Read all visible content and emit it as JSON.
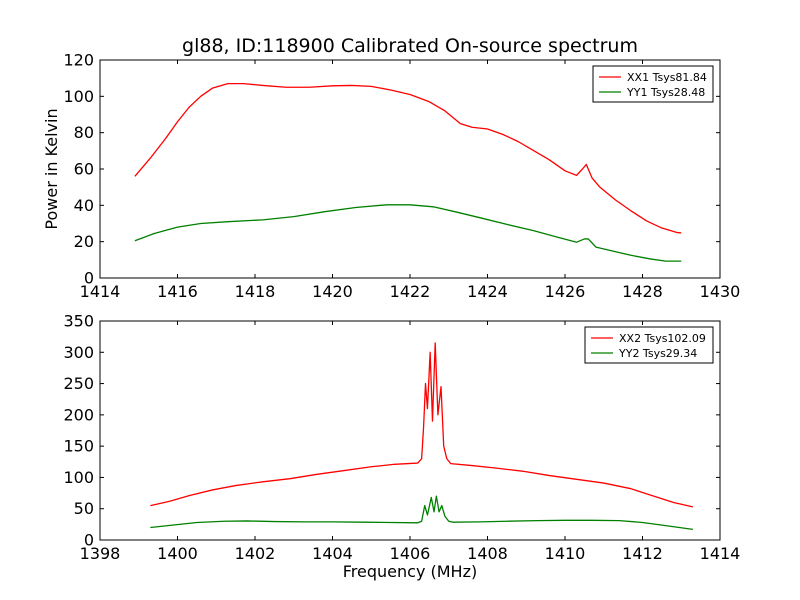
{
  "chart_data": [
    {
      "type": "line",
      "title": "gl88, ID:118900 Calibrated On-source spectrum",
      "xlabel": "",
      "ylabel": "Power in Kelvin",
      "xlim": [
        1414,
        1430
      ],
      "ylim": [
        0,
        120
      ],
      "xticks": [
        1414,
        1416,
        1418,
        1420,
        1422,
        1424,
        1426,
        1428,
        1430
      ],
      "yticks": [
        0,
        20,
        40,
        60,
        80,
        100,
        120
      ],
      "grid": false,
      "legend_position": "top-right",
      "series": [
        {
          "name": "XX1 Tsys81.84",
          "color": "#ff0000",
          "points": [
            [
              1414.9,
              56
            ],
            [
              1415.3,
              66
            ],
            [
              1415.7,
              77
            ],
            [
              1416.0,
              86
            ],
            [
              1416.3,
              94
            ],
            [
              1416.6,
              100
            ],
            [
              1416.9,
              104.5
            ],
            [
              1417.3,
              107
            ],
            [
              1417.7,
              107
            ],
            [
              1418.2,
              106
            ],
            [
              1418.8,
              105
            ],
            [
              1419.4,
              105
            ],
            [
              1420.0,
              105.8
            ],
            [
              1420.5,
              106
            ],
            [
              1421.0,
              105.5
            ],
            [
              1421.5,
              103.5
            ],
            [
              1422.0,
              101
            ],
            [
              1422.5,
              97
            ],
            [
              1422.9,
              92
            ],
            [
              1423.3,
              85
            ],
            [
              1423.6,
              83
            ],
            [
              1424.0,
              82
            ],
            [
              1424.4,
              79
            ],
            [
              1424.8,
              75
            ],
            [
              1425.2,
              70
            ],
            [
              1425.6,
              65
            ],
            [
              1426.0,
              59
            ],
            [
              1426.3,
              56.5
            ],
            [
              1426.45,
              60
            ],
            [
              1426.55,
              62.5
            ],
            [
              1426.7,
              55
            ],
            [
              1426.9,
              50
            ],
            [
              1427.3,
              43
            ],
            [
              1427.7,
              37
            ],
            [
              1428.1,
              31.5
            ],
            [
              1428.5,
              27.5
            ],
            [
              1428.9,
              25
            ],
            [
              1429.0,
              24.8
            ]
          ]
        },
        {
          "name": "YY1 Tsys28.48",
          "color": "#008000",
          "points": [
            [
              1414.9,
              20.5
            ],
            [
              1415.4,
              24.5
            ],
            [
              1416.0,
              28
            ],
            [
              1416.6,
              30
            ],
            [
              1417.3,
              31
            ],
            [
              1418.2,
              32
            ],
            [
              1419.0,
              33.8
            ],
            [
              1419.8,
              36.5
            ],
            [
              1420.6,
              38.8
            ],
            [
              1421.4,
              40.3
            ],
            [
              1422.0,
              40.3
            ],
            [
              1422.6,
              39.2
            ],
            [
              1423.2,
              36.3
            ],
            [
              1423.8,
              33.2
            ],
            [
              1424.5,
              29.5
            ],
            [
              1425.2,
              26
            ],
            [
              1425.8,
              22.5
            ],
            [
              1426.3,
              19.7
            ],
            [
              1426.5,
              21.5
            ],
            [
              1426.6,
              21.5
            ],
            [
              1426.8,
              17
            ],
            [
              1427.2,
              15
            ],
            [
              1427.7,
              12.5
            ],
            [
              1428.2,
              10.5
            ],
            [
              1428.6,
              9.3
            ],
            [
              1429.0,
              9.3
            ]
          ]
        }
      ]
    },
    {
      "type": "line",
      "title": "",
      "xlabel": "Frequency (MHz)",
      "ylabel": "",
      "xlim": [
        1398,
        1414
      ],
      "ylim": [
        0,
        350
      ],
      "xticks": [
        1398,
        1400,
        1402,
        1404,
        1406,
        1408,
        1410,
        1412,
        1414
      ],
      "yticks": [
        0,
        50,
        100,
        150,
        200,
        250,
        300,
        350
      ],
      "grid": false,
      "legend_position": "top-right",
      "series": [
        {
          "name": "XX2 Tsys102.09",
          "color": "#ff0000",
          "points": [
            [
              1399.3,
              55
            ],
            [
              1399.8,
              62
            ],
            [
              1400.3,
              71
            ],
            [
              1400.9,
              80
            ],
            [
              1401.5,
              87
            ],
            [
              1402.2,
              93
            ],
            [
              1402.9,
              98
            ],
            [
              1403.6,
              105
            ],
            [
              1404.3,
              111
            ],
            [
              1405.0,
              117
            ],
            [
              1405.6,
              121
            ],
            [
              1406.2,
              123
            ],
            [
              1406.3,
              130
            ],
            [
              1406.35,
              180
            ],
            [
              1406.4,
              250
            ],
            [
              1406.45,
              210
            ],
            [
              1406.52,
              300
            ],
            [
              1406.58,
              190
            ],
            [
              1406.65,
              315
            ],
            [
              1406.72,
              200
            ],
            [
              1406.8,
              245
            ],
            [
              1406.87,
              150
            ],
            [
              1406.95,
              130
            ],
            [
              1407.05,
              122
            ],
            [
              1407.6,
              119
            ],
            [
              1408.2,
              115
            ],
            [
              1408.9,
              110
            ],
            [
              1409.6,
              103
            ],
            [
              1410.3,
              97
            ],
            [
              1411.0,
              91
            ],
            [
              1411.7,
              82
            ],
            [
              1412.2,
              72
            ],
            [
              1412.8,
              60
            ],
            [
              1413.3,
              53
            ]
          ]
        },
        {
          "name": "YY2 Tsys29.34",
          "color": "#008000",
          "points": [
            [
              1399.3,
              20
            ],
            [
              1399.9,
              24
            ],
            [
              1400.5,
              28
            ],
            [
              1401.2,
              30
            ],
            [
              1401.8,
              30.5
            ],
            [
              1402.5,
              29.5
            ],
            [
              1403.3,
              29
            ],
            [
              1404.0,
              29
            ],
            [
              1404.8,
              28.5
            ],
            [
              1405.5,
              28
            ],
            [
              1406.2,
              27.5
            ],
            [
              1406.3,
              30
            ],
            [
              1406.38,
              55
            ],
            [
              1406.45,
              40
            ],
            [
              1406.55,
              68
            ],
            [
              1406.62,
              45
            ],
            [
              1406.68,
              70
            ],
            [
              1406.75,
              45
            ],
            [
              1406.82,
              55
            ],
            [
              1406.9,
              38
            ],
            [
              1407.0,
              30
            ],
            [
              1407.1,
              28.5
            ],
            [
              1407.8,
              29
            ],
            [
              1408.5,
              30
            ],
            [
              1409.3,
              31
            ],
            [
              1410.0,
              31.5
            ],
            [
              1410.7,
              31.5
            ],
            [
              1411.4,
              31
            ],
            [
              1412.0,
              28
            ],
            [
              1412.6,
              23
            ],
            [
              1413.3,
              17
            ]
          ]
        }
      ]
    }
  ]
}
